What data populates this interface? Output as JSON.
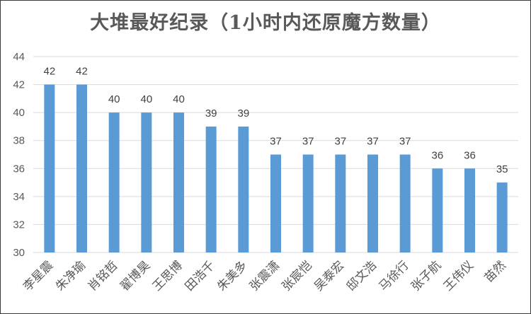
{
  "chart_data": {
    "type": "bar",
    "title": "大堆最好纪录（1小时内还原魔方数量）",
    "categories": [
      "李星震",
      "朱净瑜",
      "肖铭哲",
      "翟博昊",
      "王思博",
      "田浩千",
      "朱美多",
      "张震潇",
      "张宸恺",
      "吴泰宏",
      "邸文浩",
      "马徐行",
      "张子航",
      "王伟仪",
      "苗然"
    ],
    "values": [
      42,
      42,
      40,
      40,
      40,
      39,
      39,
      37,
      37,
      37,
      37,
      37,
      36,
      36,
      35
    ],
    "xlabel": "",
    "ylabel": "",
    "ylim": [
      30,
      44
    ],
    "yticks": [
      30,
      32,
      34,
      36,
      38,
      40,
      42,
      44
    ],
    "grid": true,
    "legend": "none",
    "bar_color": "#5b9bd5",
    "grid_color": "#d9d9d9"
  }
}
